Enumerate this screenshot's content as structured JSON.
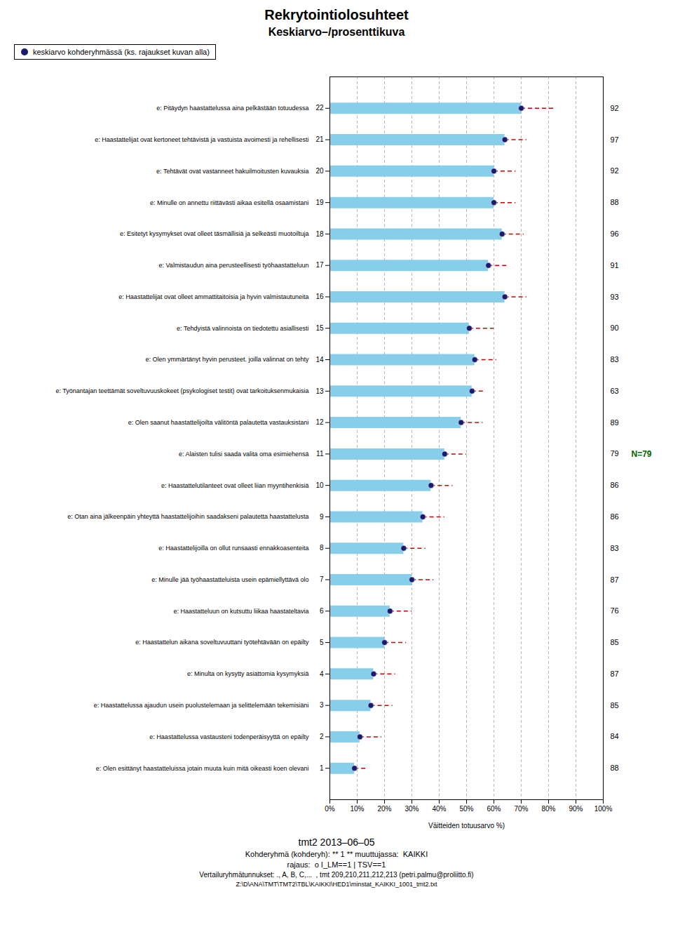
{
  "chart_data": {
    "type": "bar",
    "orientation": "horizontal",
    "title": "Rekrytointiolosuhteet",
    "subtitle": "Keskiarvo–/prosenttikuva",
    "x_label": "Väitteiden totuusarvo %)",
    "caption": [
      "tmt2 2013–06–05",
      "Kohderyhmä (kohderyh): ** 1 ** muuttujassa:  KAIKKI",
      "rajaus:  o I_LM==1 | TSV==1",
      "Vertailuryhmätunnukset: ., A, B, C,...  , tmt 209,210,211,212,213 (petri.palmu@proliitto.fi)",
      "Z:\\D\\ANA\\TMT\\TMT2\\TBL\\KAIKKI\\HED1\\minstat_KAIKKI_1001_tmt2.txt"
    ],
    "categories": [
      "e: Pitäydyn haastattelussa aina pelkästään totuudessa",
      "e: Haastattelijat ovat kertoneet tehtävistä ja vastuista avoimesti ja rehellisesti",
      "e: Tehtävät ovat vastanneet hakuilmoitusten kuvauksia",
      "e: Minulle on annettu riittävästi aikaa esitellä osaamistani",
      "e: Esitetyt kysymykset ovat olleet täsmällisiä ja selkeästi muotoiltuja",
      "e: Valmistaudun aina perusteellisesti työhaastatteluun",
      "e: Haastattelijat ovat olleet ammattitaitoisia ja hyvin valmistautuneita",
      "e: Tehdyistä valinnoista on tiedotettu asiallisesti",
      "e: Olen ymmärtänyt hyvin perusteet. joilla valinnat on tehty",
      "e: Työnantajan teettämät soveltuvuuskokeet (psykologiset testit) ovat tarkoituksenmukaisia",
      "e: Olen saanut haastattelijoilta välitöntä palautetta vastauksistani",
      "e: Alaisten tulisi saada valita oma esimiehensä",
      "e: Haastattelutilanteet ovat olleet liian myyntihenkisiä",
      "e: Otan aina jälkeenpäin yhteyttä haastattelijoihin saadakseni palautetta haastattelusta",
      "e: Haastattelijoilla on ollut runsaasti ennakkoasenteita",
      "e: Minulle jää työhaastatteluista usein epämiellyttävä olo",
      "e: Haastatteluun on kutsuttu liikaa haastateltavia",
      "e: Haastattelun aikana soveltuvuuttani työtehtävään on epäilty",
      "e: Minulta on kysytty asiattomia kysymyksiä",
      "e: Haastattelussa ajaudun usein puolustelemaan ja selittelemään tekemisiäni",
      "e: Haastattelussa vastausteni todenperäisyyttä on epäilty",
      "e: Olen esittänyt haastatteluissa jotain muuta kuin mitä oikeasti koen olevani"
    ],
    "y": [
      22,
      21,
      20,
      19,
      18,
      17,
      16,
      15,
      14,
      13,
      12,
      11,
      10,
      9,
      8,
      7,
      6,
      5,
      4,
      3,
      2,
      1
    ],
    "values": [
      70,
      64,
      60,
      60,
      63,
      58,
      64,
      51,
      53,
      52,
      48,
      42,
      37,
      34,
      27,
      30,
      22,
      20,
      16,
      15,
      11,
      9
    ],
    "color": "#87CEEB",
    "series": [
      {
        "name": "keskiarvo kohderyhmässä (ks. rajaukset kuvan alla)",
        "type": "scatter",
        "marker": "o",
        "color": "#1a1a6e",
        "values": [
          70,
          64,
          60,
          60,
          63,
          58,
          64,
          51,
          53,
          52,
          48,
          42,
          37,
          34,
          27,
          30,
          22,
          20,
          16,
          15,
          11,
          9
        ]
      },
      {
        "type": "line",
        "line_style": "dashed",
        "color": "#cc0000",
        "values": [
          82,
          72,
          68,
          68,
          71,
          65,
          72,
          60,
          61,
          57,
          56,
          50,
          45,
          42,
          35,
          38,
          30,
          28,
          24,
          23,
          19,
          14
        ]
      }
    ],
    "right_values": [
      92,
      97,
      92,
      88,
      96,
      91,
      93,
      90,
      83,
      63,
      89,
      79,
      86,
      86,
      83,
      87,
      76,
      85,
      87,
      85,
      84,
      88
    ],
    "annotations": [
      {
        "text": "N=79",
        "y": 11,
        "color": "#006400"
      }
    ],
    "xlim": [
      0,
      100
    ],
    "xticks": [
      {
        "value": 0,
        "label": "0%"
      },
      {
        "value": 10,
        "label": "10%"
      },
      {
        "value": 20,
        "label": "20%"
      },
      {
        "value": 30,
        "label": "30%"
      },
      {
        "value": 40,
        "label": "40%"
      },
      {
        "value": 50,
        "label": "50%"
      },
      {
        "value": 60,
        "label": "60%"
      },
      {
        "value": 70,
        "label": "70%"
      },
      {
        "value": 80,
        "label": "80%"
      },
      {
        "value": 90,
        "label": "90%"
      },
      {
        "value": 100,
        "label": "100%"
      }
    ],
    "ylim": [
      0,
      23
    ],
    "yticks": [
      22,
      21,
      20,
      19,
      18,
      17,
      16,
      15,
      14,
      13,
      12,
      11,
      10,
      9,
      8,
      7,
      6,
      5,
      4,
      3,
      2,
      1
    ],
    "grid": true,
    "legend": "top-left"
  }
}
